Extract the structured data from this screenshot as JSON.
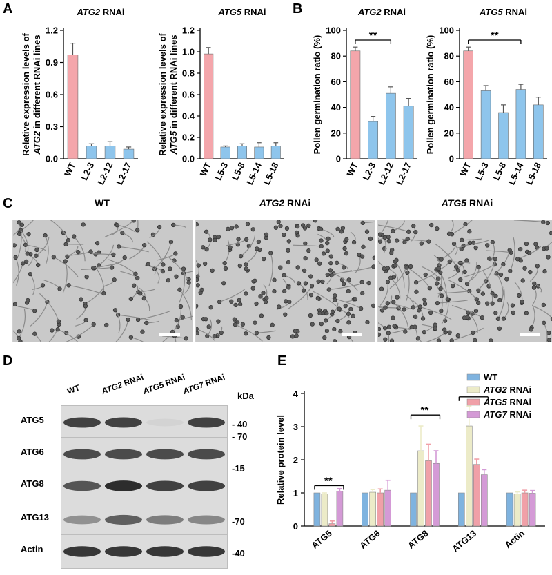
{
  "panels": {
    "A": "A",
    "B": "B",
    "C": "C",
    "D": "D",
    "E": "E"
  },
  "panelA": {
    "left": {
      "title_gene": "ATG2",
      "title_rest": " RNAi",
      "ylabel_line1": "Relative expression levels of",
      "ylabel_line2_gene": "ATG2",
      "ylabel_line2_rest": " in different RNAi lines",
      "ticks": [
        "0.0",
        "0.3",
        "0.6",
        "0.9",
        "1.2"
      ]
    },
    "right": {
      "title_gene": "ATG5",
      "title_rest": " RNAi",
      "ylabel_line1": "Relative expression levels of",
      "ylabel_line2_gene": "ATG5",
      "ylabel_line2_rest": " in different RNAi lines",
      "ticks": [
        "0.0",
        "0.2",
        "0.4",
        "0.6",
        "0.8",
        "1.0",
        "1.2"
      ]
    }
  },
  "panelB": {
    "left": {
      "title_gene": "ATG2",
      "title_rest": " RNAi",
      "ylabel": "Pollen germination ratio (%)",
      "ticks": [
        "0",
        "20",
        "40",
        "60",
        "80",
        "100"
      ],
      "sig": "**"
    },
    "right": {
      "title_gene": "ATG5",
      "title_rest": " RNAi",
      "ylabel": "Pollen germination ratio (%)",
      "ticks": [
        "0",
        "20",
        "40",
        "60",
        "80",
        "100"
      ],
      "sig": "**"
    }
  },
  "panelC": {
    "titles": [
      {
        "gene": "",
        "rest": "WT"
      },
      {
        "gene": "ATG2",
        "rest": " RNAi"
      },
      {
        "gene": "ATG5",
        "rest": " RNAi"
      }
    ]
  },
  "panelD": {
    "lanes": [
      {
        "gene": "",
        "rest": "WT"
      },
      {
        "gene": "ATG2",
        "rest": " RNAi"
      },
      {
        "gene": "ATG5",
        "rest": " RNAi"
      },
      {
        "gene": "ATG7",
        "rest": " RNAi"
      }
    ],
    "kda": "kDa",
    "blots": [
      {
        "label": "ATG5",
        "marker_top": "",
        "marker_bottom": "- 40",
        "intensities": [
          0.85,
          0.85,
          0.12,
          0.85
        ]
      },
      {
        "label": "ATG6",
        "marker_top": "- 70",
        "marker_bottom": "",
        "intensities": [
          0.8,
          0.8,
          0.8,
          0.8
        ]
      },
      {
        "label": "ATG8",
        "marker_top": "-15",
        "marker_bottom": "",
        "intensities": [
          0.75,
          0.95,
          0.85,
          0.85
        ]
      },
      {
        "label": "ATG13",
        "marker_top": "",
        "marker_bottom": "-70",
        "intensities": [
          0.45,
          0.7,
          0.55,
          0.5
        ]
      },
      {
        "label": "Actin",
        "marker_top": "",
        "marker_bottom": "-40",
        "intensities": [
          0.9,
          0.9,
          0.9,
          0.9
        ]
      }
    ]
  },
  "panelE": {
    "ylabel": "Relative protein level",
    "ticks": [
      "0",
      "1",
      "2",
      "3",
      "4"
    ],
    "legend": [
      {
        "gene": "",
        "rest": "WT",
        "color": "#7fb3df"
      },
      {
        "gene": "ATG2",
        "rest": " RNAi",
        "color": "#ecebc8"
      },
      {
        "gene": "ATG5",
        "rest": " RNAi",
        "color": "#f0a0a8"
      },
      {
        "gene": "ATG7",
        "rest": " RNAi",
        "color": "#d49ad6"
      }
    ],
    "sig": "**"
  },
  "chart_data": [
    {
      "type": "bar",
      "panel": "A-left",
      "title": "ATG2 RNAi",
      "ylabel": "Relative expression levels of ATG2 in different RNAi lines",
      "categories": [
        "WT",
        "L2-3",
        "L2-12",
        "L2-17"
      ],
      "values": [
        0.97,
        0.12,
        0.12,
        0.09
      ],
      "errors": [
        0.11,
        0.02,
        0.04,
        0.02
      ],
      "colors": [
        "#f4a6ab",
        "#8ec5ec",
        "#8ec5ec",
        "#8ec5ec"
      ],
      "ylim": [
        0,
        1.2
      ]
    },
    {
      "type": "bar",
      "panel": "A-right",
      "title": "ATG5 RNAi",
      "ylabel": "Relative expression levels of ATG5 in different RNAi lines",
      "categories": [
        "WT",
        "L5-3",
        "L5-8",
        "L5-14",
        "L5-18"
      ],
      "values": [
        0.98,
        0.11,
        0.12,
        0.11,
        0.12
      ],
      "errors": [
        0.06,
        0.01,
        0.02,
        0.04,
        0.03
      ],
      "colors": [
        "#f4a6ab",
        "#8ec5ec",
        "#8ec5ec",
        "#8ec5ec",
        "#8ec5ec"
      ],
      "ylim": [
        0,
        1.2
      ]
    },
    {
      "type": "bar",
      "panel": "B-left",
      "title": "ATG2 RNAi",
      "ylabel": "Pollen germination ratio (%)",
      "categories": [
        "WT",
        "L2-3",
        "L2-12",
        "L2-17"
      ],
      "values": [
        84,
        29,
        51,
        41
      ],
      "errors": [
        3,
        4,
        5,
        6
      ],
      "colors": [
        "#f4a6ab",
        "#8ec5ec",
        "#8ec5ec",
        "#8ec5ec"
      ],
      "ylim": [
        0,
        100
      ]
    },
    {
      "type": "bar",
      "panel": "B-right",
      "title": "ATG5 RNAi",
      "ylabel": "Pollen germination ratio (%)",
      "categories": [
        "WT",
        "L5-3",
        "L5-8",
        "L5-14",
        "L5-18"
      ],
      "values": [
        84,
        53,
        36,
        54,
        42
      ],
      "errors": [
        3,
        4,
        6,
        4,
        6
      ],
      "colors": [
        "#f4a6ab",
        "#8ec5ec",
        "#8ec5ec",
        "#8ec5ec",
        "#8ec5ec"
      ],
      "ylim": [
        0,
        100
      ]
    },
    {
      "type": "bar",
      "panel": "E",
      "ylabel": "Relative protein level",
      "categories": [
        "ATG5",
        "ATG6",
        "ATG8",
        "ATG13",
        "Actin"
      ],
      "series": [
        {
          "name": "WT",
          "values": [
            1.0,
            1.0,
            1.0,
            1.0,
            1.0
          ],
          "errors": [
            0,
            0,
            0,
            0,
            0
          ]
        },
        {
          "name": "ATG2 RNAi",
          "values": [
            0.97,
            1.02,
            2.27,
            3.02,
            0.97
          ],
          "errors": [
            0.03,
            0.08,
            0.75,
            0.6,
            0.06
          ]
        },
        {
          "name": "ATG5 RNAi",
          "values": [
            0.07,
            1.0,
            1.97,
            1.86,
            1.0
          ],
          "errors": [
            0.08,
            0.12,
            0.5,
            0.16,
            0.08
          ]
        },
        {
          "name": "ATG7 RNAi",
          "values": [
            1.05,
            1.08,
            1.89,
            1.55,
            0.99
          ],
          "errors": [
            0.08,
            0.3,
            0.38,
            0.15,
            0.08
          ]
        }
      ],
      "ylim": [
        0,
        4
      ]
    }
  ]
}
